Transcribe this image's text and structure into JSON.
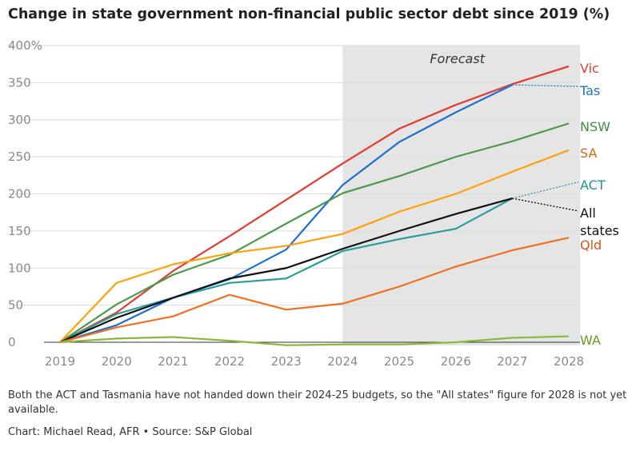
{
  "title": "Change in state government non-financial public sector debt since 2019 (%)",
  "note": "Both the ACT and Tasmania have not handed down their 2024-25 budgets, so the \"All states\" figure for 2028 is not yet available.",
  "credit": "Chart: Michael Read, AFR • Source: S&P Global",
  "chart_data": {
    "type": "line",
    "title": "Change in state government non-financial public sector debt since 2019 (%)",
    "x": [
      2019,
      2020,
      2021,
      2022,
      2023,
      2024,
      2025,
      2026,
      2027,
      2028
    ],
    "x_tick_labels": [
      "2019",
      "2020",
      "2021",
      "2022",
      "2023",
      "2024",
      "2025",
      "2026",
      "2027",
      "2028"
    ],
    "y_tick_labels": [
      "0",
      "50",
      "100",
      "150",
      "200",
      "250",
      "300",
      "350",
      "400%"
    ],
    "y_ticks": [
      0,
      50,
      100,
      150,
      200,
      250,
      300,
      350,
      400
    ],
    "ylim": [
      0,
      400
    ],
    "grid": true,
    "forecast_region": {
      "from": 2024,
      "to": 2028,
      "label": "Forecast"
    },
    "series": [
      {
        "name": "Vic",
        "color": "#e03c31",
        "label_color": "#e03c31",
        "values": [
          0,
          40,
          96,
          143,
          192,
          241,
          288,
          320,
          348,
          372
        ],
        "dotted_last": false
      },
      {
        "name": "Tas",
        "color": "#1f6fd1",
        "label_color": "#1f6fd1",
        "values": [
          0,
          23,
          60,
          85,
          125,
          212,
          270,
          310,
          347,
          345
        ],
        "dotted_last": true
      },
      {
        "name": "NSW",
        "color": "#4a9a4a",
        "label_color": "#3f8f3f",
        "values": [
          0,
          51,
          91,
          118,
          160,
          201,
          224,
          250,
          271,
          295
        ],
        "dotted_last": false
      },
      {
        "name": "SA",
        "color": "#ffa00a",
        "label_color": "#d06a10",
        "values": [
          0,
          80,
          105,
          120,
          130,
          146,
          176,
          200,
          230,
          259
        ],
        "dotted_last": false
      },
      {
        "name": "ACT",
        "color": "#2a9d9f",
        "label_color": "#1f9496",
        "values": [
          0,
          38,
          60,
          80,
          86,
          123,
          139,
          153,
          194,
          216
        ],
        "dotted_last": true
      },
      {
        "name": "All states",
        "label_lines": [
          "All",
          "states"
        ],
        "color": "#111111",
        "label_color": "#111111",
        "values": [
          0,
          33,
          60,
          86,
          100,
          126,
          150,
          173,
          194,
          177
        ],
        "dotted_last": true
      },
      {
        "name": "Qld",
        "color": "#f07020",
        "label_color": "#d2551a",
        "values": [
          0,
          20,
          35,
          64,
          44,
          52,
          75,
          102,
          124,
          141
        ],
        "dotted_last": false
      },
      {
        "name": "WA",
        "color": "#8ab83a",
        "label_color": "#6a9a20",
        "values": [
          0,
          5,
          7,
          2,
          -4,
          -3,
          -3,
          0,
          6,
          8
        ],
        "dotted_last": false
      }
    ]
  }
}
